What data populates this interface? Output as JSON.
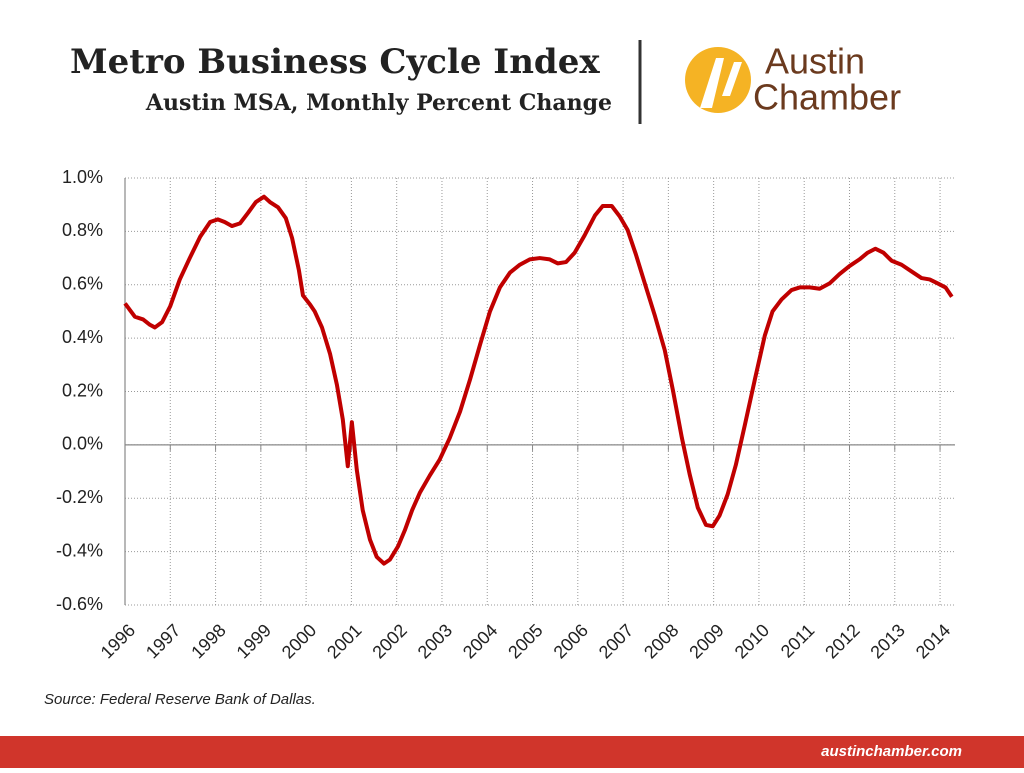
{
  "header": {
    "title": "Metro Business Cycle Index",
    "subtitle": "Austin MSA, Monthly Percent Change",
    "logo_line1": "Austin",
    "logo_line2": "Chamber"
  },
  "chart_data": {
    "type": "line",
    "x": [
      1996.0,
      1996.22,
      1996.4,
      1996.55,
      1996.66,
      1996.82,
      1997.0,
      1997.21,
      1997.43,
      1997.66,
      1997.88,
      1998.05,
      1998.2,
      1998.36,
      1998.54,
      1998.72,
      1998.89,
      1999.07,
      1999.2,
      1999.38,
      1999.55,
      1999.69,
      1999.84,
      1999.93,
      2000.09,
      2000.19,
      2000.35,
      2000.53,
      2000.68,
      2000.81,
      2000.92,
      2001.01,
      2001.12,
      2001.25,
      2001.41,
      2001.56,
      2001.72,
      2001.85,
      2002.03,
      2002.18,
      2002.34,
      2002.51,
      2002.73,
      2002.95,
      2003.17,
      2003.4,
      2003.62,
      2003.84,
      2004.06,
      2004.28,
      2004.5,
      2004.72,
      2004.94,
      2005.16,
      2005.38,
      2005.56,
      2005.74,
      2005.93,
      2006.15,
      2006.38,
      2006.55,
      2006.75,
      2006.93,
      2007.1,
      2007.28,
      2007.48,
      2007.7,
      2007.92,
      2008.1,
      2008.3,
      2008.47,
      2008.65,
      2008.83,
      2008.98,
      2009.13,
      2009.31,
      2009.49,
      2009.69,
      2009.91,
      2010.13,
      2010.3,
      2010.5,
      2010.72,
      2010.9,
      2011.12,
      2011.34,
      2011.56,
      2011.78,
      2012.0,
      2012.22,
      2012.4,
      2012.57,
      2012.75,
      2012.93,
      2013.15,
      2013.37,
      2013.59,
      2013.77,
      2013.95,
      2014.12,
      2014.26
    ],
    "series": [
      {
        "name": "Metro Business Cycle Index",
        "color": "#c00000",
        "values": [
          0.53,
          0.48,
          0.47,
          0.45,
          0.44,
          0.46,
          0.52,
          0.62,
          0.7,
          0.78,
          0.835,
          0.845,
          0.835,
          0.82,
          0.83,
          0.87,
          0.91,
          0.93,
          0.91,
          0.89,
          0.85,
          0.775,
          0.655,
          0.56,
          0.525,
          0.5,
          0.44,
          0.34,
          0.225,
          0.095,
          -0.08,
          0.085,
          -0.095,
          -0.245,
          -0.355,
          -0.42,
          -0.445,
          -0.43,
          -0.38,
          -0.32,
          -0.245,
          -0.18,
          -0.115,
          -0.055,
          0.025,
          0.125,
          0.245,
          0.375,
          0.5,
          0.59,
          0.645,
          0.675,
          0.695,
          0.7,
          0.695,
          0.68,
          0.685,
          0.72,
          0.785,
          0.86,
          0.895,
          0.895,
          0.855,
          0.805,
          0.715,
          0.605,
          0.485,
          0.355,
          0.205,
          0.025,
          -0.11,
          -0.235,
          -0.3,
          -0.305,
          -0.265,
          -0.185,
          -0.075,
          0.075,
          0.245,
          0.41,
          0.5,
          0.545,
          0.58,
          0.59,
          0.59,
          0.585,
          0.605,
          0.64,
          0.67,
          0.695,
          0.72,
          0.735,
          0.72,
          0.69,
          0.675,
          0.65,
          0.625,
          0.62,
          0.605,
          0.59,
          0.555
        ]
      }
    ],
    "xlim": [
      1996,
      2014.33
    ],
    "xticks": [
      1996,
      1997,
      1998,
      1999,
      2000,
      2001,
      2002,
      2003,
      2004,
      2005,
      2006,
      2007,
      2008,
      2009,
      2010,
      2011,
      2012,
      2013,
      2014
    ],
    "ylim": [
      -0.6,
      1.0
    ],
    "yticks": [
      {
        "value": -0.6,
        "label": "-0.6%"
      },
      {
        "value": -0.4,
        "label": "-0.4%"
      },
      {
        "value": -0.2,
        "label": "-0.2%"
      },
      {
        "value": 0,
        "label": "0.0%"
      },
      {
        "value": 0.2,
        "label": "0.2%"
      },
      {
        "value": 0.4,
        "label": "0.4%"
      },
      {
        "value": 0.6,
        "label": "0.6%"
      },
      {
        "value": 0.8,
        "label": "0.8%"
      },
      {
        "value": 1.0,
        "label": "1.0%"
      }
    ],
    "grid": true,
    "source": "Source: Federal Reserve Bank of Dallas."
  },
  "footer": {
    "url": "austinchamber.com"
  }
}
